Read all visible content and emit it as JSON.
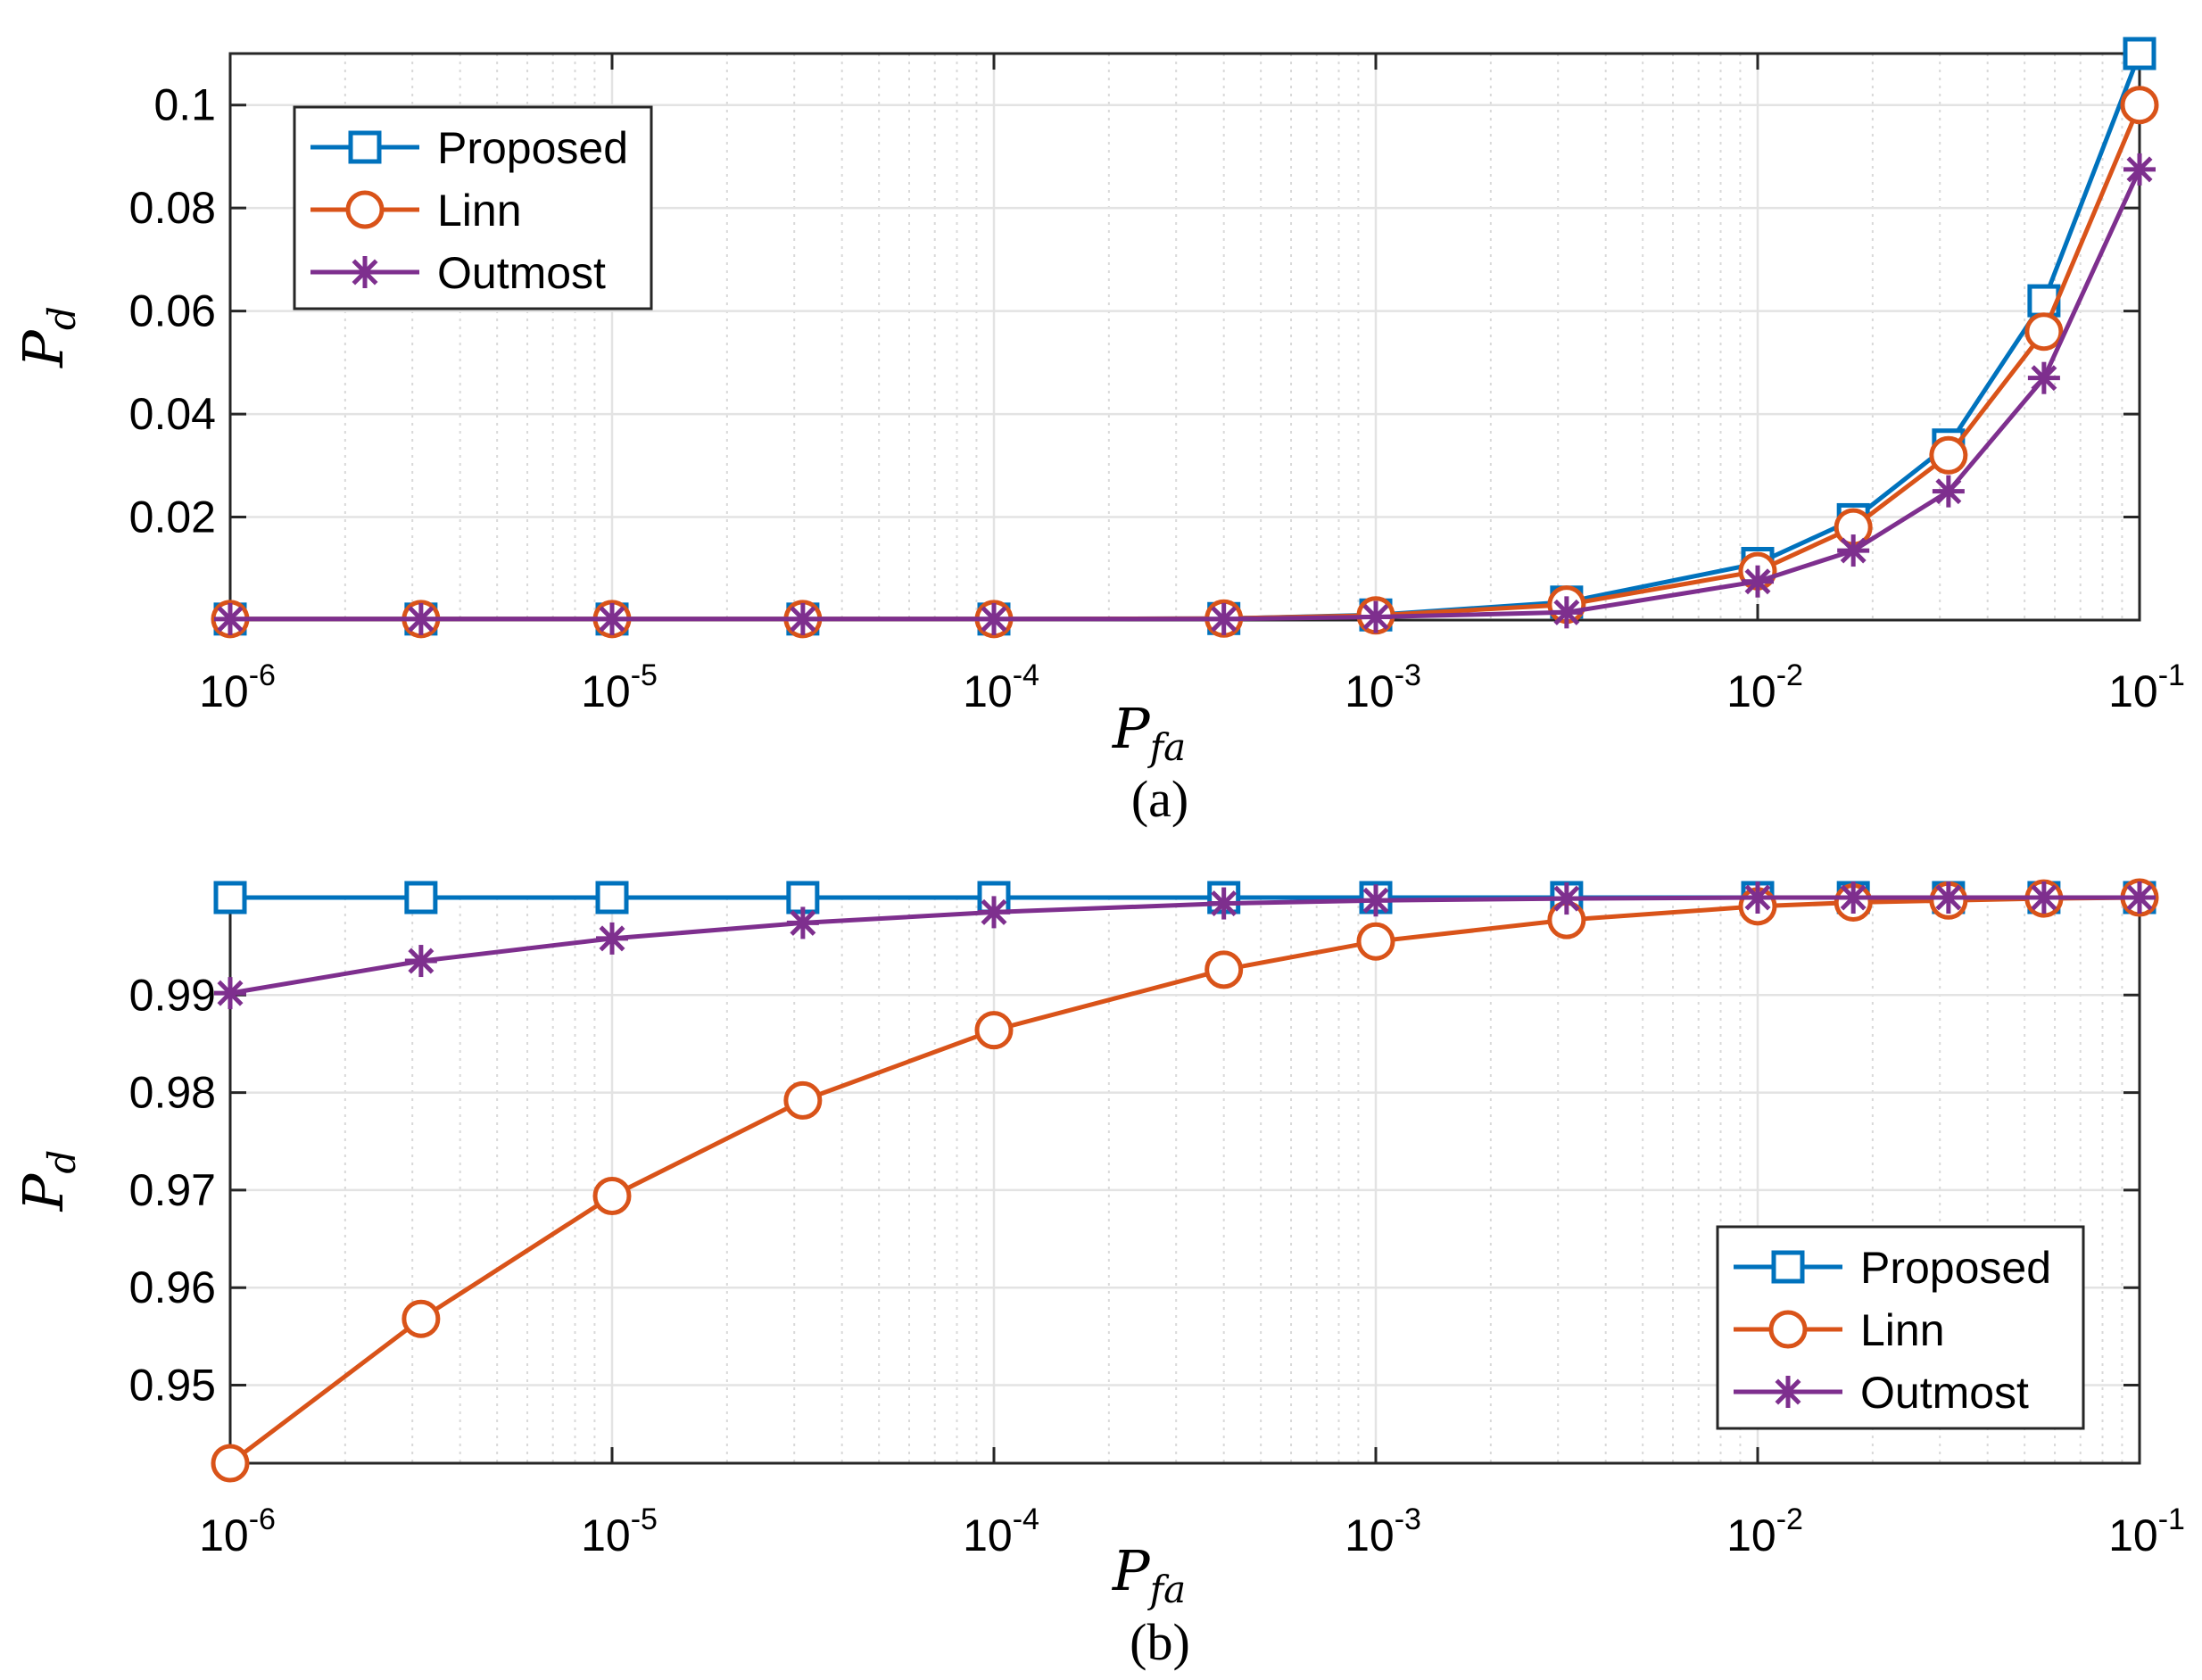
{
  "chart_data": [
    {
      "type": "line",
      "caption": "(a)",
      "xscale": "log",
      "xlabel": "P_fa",
      "ylabel": "P_d",
      "xlim": [
        1e-06,
        0.1
      ],
      "ylim": [
        0,
        0.11
      ],
      "x_ticks": [
        {
          "base": "10",
          "exp": "-6"
        },
        {
          "base": "10",
          "exp": "-5"
        },
        {
          "base": "10",
          "exp": "-4"
        },
        {
          "base": "10",
          "exp": "-3"
        },
        {
          "base": "10",
          "exp": "-2"
        },
        {
          "base": "10",
          "exp": "-1"
        }
      ],
      "y_ticks": [
        "0.02",
        "0.04",
        "0.06",
        "0.08",
        "0.1"
      ],
      "y_tick_values": [
        0.02,
        0.04,
        0.06,
        0.08,
        0.1
      ],
      "grid": true,
      "legend_position": "top-left",
      "x": [
        1e-06,
        3.16e-06,
        1e-05,
        3.16e-05,
        0.0001,
        0.0004,
        0.001,
        0.00316,
        0.01,
        0.0178,
        0.0316,
        0.0562,
        0.1
      ],
      "series": [
        {
          "name": "Proposed",
          "color": "#0072BD",
          "marker": "square",
          "values": [
            0.0002,
            0.0002,
            0.0002,
            0.0002,
            0.0002,
            0.0003,
            0.001,
            0.0035,
            0.011,
            0.0195,
            0.034,
            0.062,
            0.11
          ]
        },
        {
          "name": "Linn",
          "color": "#D95319",
          "marker": "circle",
          "values": [
            0.0002,
            0.0002,
            0.0002,
            0.0002,
            0.0002,
            0.0003,
            0.0009,
            0.003,
            0.0095,
            0.018,
            0.032,
            0.056,
            0.1
          ]
        },
        {
          "name": "Outmost",
          "color": "#7E2F8E",
          "marker": "asterisk",
          "values": [
            0.0002,
            0.0002,
            0.0002,
            0.0002,
            0.0002,
            0.0002,
            0.0006,
            0.0015,
            0.0075,
            0.0135,
            0.025,
            0.047,
            0.0875
          ]
        }
      ]
    },
    {
      "type": "line",
      "caption": "(b)",
      "xscale": "log",
      "xlabel": "P_fa",
      "ylabel": "P_d",
      "xlim": [
        1e-06,
        0.1
      ],
      "ylim": [
        0.942,
        1.0
      ],
      "x_ticks": [
        {
          "base": "10",
          "exp": "-6"
        },
        {
          "base": "10",
          "exp": "-5"
        },
        {
          "base": "10",
          "exp": "-4"
        },
        {
          "base": "10",
          "exp": "-3"
        },
        {
          "base": "10",
          "exp": "-2"
        },
        {
          "base": "10",
          "exp": "-1"
        }
      ],
      "y_ticks": [
        "0.95",
        "0.96",
        "0.97",
        "0.98",
        "0.99"
      ],
      "y_tick_values": [
        0.95,
        0.96,
        0.97,
        0.98,
        0.99
      ],
      "grid": true,
      "legend_position": "bottom-right",
      "x": [
        1e-06,
        3.16e-06,
        1e-05,
        3.16e-05,
        0.0001,
        0.0004,
        0.001,
        0.00316,
        0.01,
        0.0178,
        0.0316,
        0.0562,
        0.1
      ],
      "series": [
        {
          "name": "Proposed",
          "color": "#0072BD",
          "marker": "square",
          "values": [
            1.0,
            1.0,
            1.0,
            1.0,
            1.0,
            1.0,
            1.0,
            1.0,
            1.0,
            1.0,
            1.0,
            1.0,
            1.0
          ]
        },
        {
          "name": "Linn",
          "color": "#D95319",
          "marker": "circle",
          "values": [
            0.942,
            0.9568,
            0.9694,
            0.9792,
            0.9864,
            0.9926,
            0.9955,
            0.9977,
            0.9991,
            0.9995,
            0.9997,
            0.9999,
            1.0
          ]
        },
        {
          "name": "Outmost",
          "color": "#7E2F8E",
          "marker": "asterisk",
          "values": [
            0.9902,
            0.9935,
            0.9958,
            0.9974,
            0.9985,
            0.9994,
            0.9997,
            0.9999,
            1.0,
            1.0,
            1.0,
            1.0,
            1.0
          ]
        }
      ]
    }
  ]
}
